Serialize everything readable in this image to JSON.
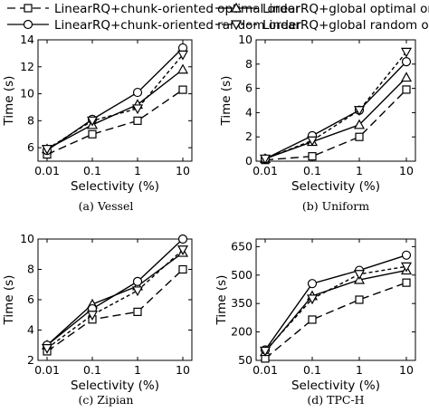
{
  "legend": {
    "items": [
      {
        "label": "LinearRQ+chunk-oriented optimal order",
        "marker": "square",
        "dash": "long"
      },
      {
        "label": "LinearRQ+global optimal order",
        "marker": "triangle-up",
        "dash": "solid"
      },
      {
        "label": "LinearRQ+chunk-oriented random order",
        "marker": "circle",
        "dash": "solid"
      },
      {
        "label": "LinearRQ+global random order",
        "marker": "triangle-down",
        "dash": "short"
      }
    ]
  },
  "chart_data": [
    {
      "type": "line",
      "caption": "(a) Vessel",
      "xlabel": "Selectivity (%)",
      "ylabel": "Time (s)",
      "categories": [
        "0.01",
        "0.1",
        "1",
        "10"
      ],
      "ylim": [
        5,
        14
      ],
      "yticks": [
        6,
        8,
        10,
        12,
        14
      ],
      "series": [
        {
          "name": "LinearRQ+chunk-oriented optimal order",
          "values": [
            5.5,
            7.0,
            8.0,
            10.3
          ]
        },
        {
          "name": "LinearRQ+global optimal order",
          "values": [
            5.9,
            7.7,
            9.2,
            11.8
          ]
        },
        {
          "name": "LinearRQ+chunk-oriented random order",
          "values": [
            5.8,
            8.1,
            10.1,
            13.4
          ]
        },
        {
          "name": "LinearRQ+global random order",
          "values": [
            5.9,
            8.0,
            8.9,
            12.9
          ]
        }
      ]
    },
    {
      "type": "line",
      "caption": "(b) Uniform",
      "xlabel": "Selectivity (%)",
      "ylabel": "Time (s)",
      "categories": [
        "0.01",
        "0.1",
        "1",
        "10"
      ],
      "ylim": [
        0,
        10
      ],
      "yticks": [
        0,
        2,
        4,
        6,
        8,
        10
      ],
      "series": [
        {
          "name": "LinearRQ+chunk-oriented optimal order",
          "values": [
            0.1,
            0.4,
            2.0,
            5.9
          ]
        },
        {
          "name": "LinearRQ+global optimal order",
          "values": [
            0.2,
            1.6,
            3.0,
            6.9
          ]
        },
        {
          "name": "LinearRQ+chunk-oriented random order",
          "values": [
            0.2,
            2.1,
            4.2,
            8.2
          ]
        },
        {
          "name": "LinearRQ+global random order",
          "values": [
            0.2,
            1.7,
            4.2,
            9.0
          ]
        }
      ]
    },
    {
      "type": "line",
      "caption": "(c) Zipian",
      "xlabel": "Selectivity (%)",
      "ylabel": "Time (s)",
      "categories": [
        "0.01",
        "0.1",
        "1",
        "10"
      ],
      "ylim": [
        2,
        10
      ],
      "yticks": [
        2,
        4,
        6,
        8,
        10
      ],
      "series": [
        {
          "name": "LinearRQ+chunk-oriented optimal order",
          "values": [
            2.6,
            4.7,
            5.2,
            8.0
          ]
        },
        {
          "name": "LinearRQ+global optimal order",
          "values": [
            3.0,
            5.7,
            6.9,
            9.1
          ]
        },
        {
          "name": "LinearRQ+chunk-oriented random order",
          "values": [
            3.0,
            5.4,
            7.2,
            10.0
          ]
        },
        {
          "name": "LinearRQ+global random order",
          "values": [
            2.8,
            5.0,
            6.6,
            9.3
          ]
        }
      ]
    },
    {
      "type": "line",
      "caption": "(d) TPC-H",
      "xlabel": "Selectivity (%)",
      "ylabel": "Time (s)",
      "categories": [
        "0.01",
        "0.1",
        "1",
        "10"
      ],
      "ylim": [
        50,
        690
      ],
      "yticks": [
        50,
        200,
        350,
        500,
        650
      ],
      "series": [
        {
          "name": "LinearRQ+chunk-oriented optimal order",
          "values": [
            60,
            265,
            370,
            460
          ]
        },
        {
          "name": "LinearRQ+global optimal order",
          "values": [
            95,
            390,
            475,
            525
          ]
        },
        {
          "name": "LinearRQ+chunk-oriented random order",
          "values": [
            105,
            455,
            525,
            605
          ]
        },
        {
          "name": "LinearRQ+global random order",
          "values": [
            100,
            375,
            505,
            545
          ]
        }
      ]
    }
  ]
}
